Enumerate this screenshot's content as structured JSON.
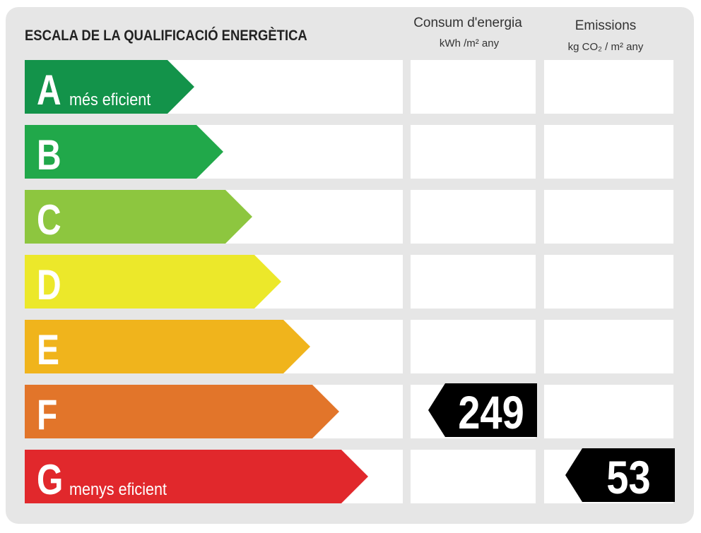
{
  "header": {
    "title": "ESCALA DE LA QUALIFICACIÓ ENERGÈTICA",
    "consumption_title": "Consum d'energia",
    "consumption_unit": "kWh /m² any",
    "emissions_title": "Emissions",
    "emissions_unit": "kg CO₂ / m² any"
  },
  "rows": [
    {
      "letter": "A",
      "label": "més eficient",
      "color": "#13934a"
    },
    {
      "letter": "B",
      "color": "#21a84a"
    },
    {
      "letter": "C",
      "color": "#8dc63f"
    },
    {
      "letter": "D",
      "color": "#ece82a"
    },
    {
      "letter": "E",
      "color": "#f0b41c"
    },
    {
      "letter": "F",
      "color": "#e2752a",
      "consumption": 249
    },
    {
      "letter": "G",
      "label": "menys eficient",
      "color": "#e1282c",
      "emissions": 53
    }
  ]
}
